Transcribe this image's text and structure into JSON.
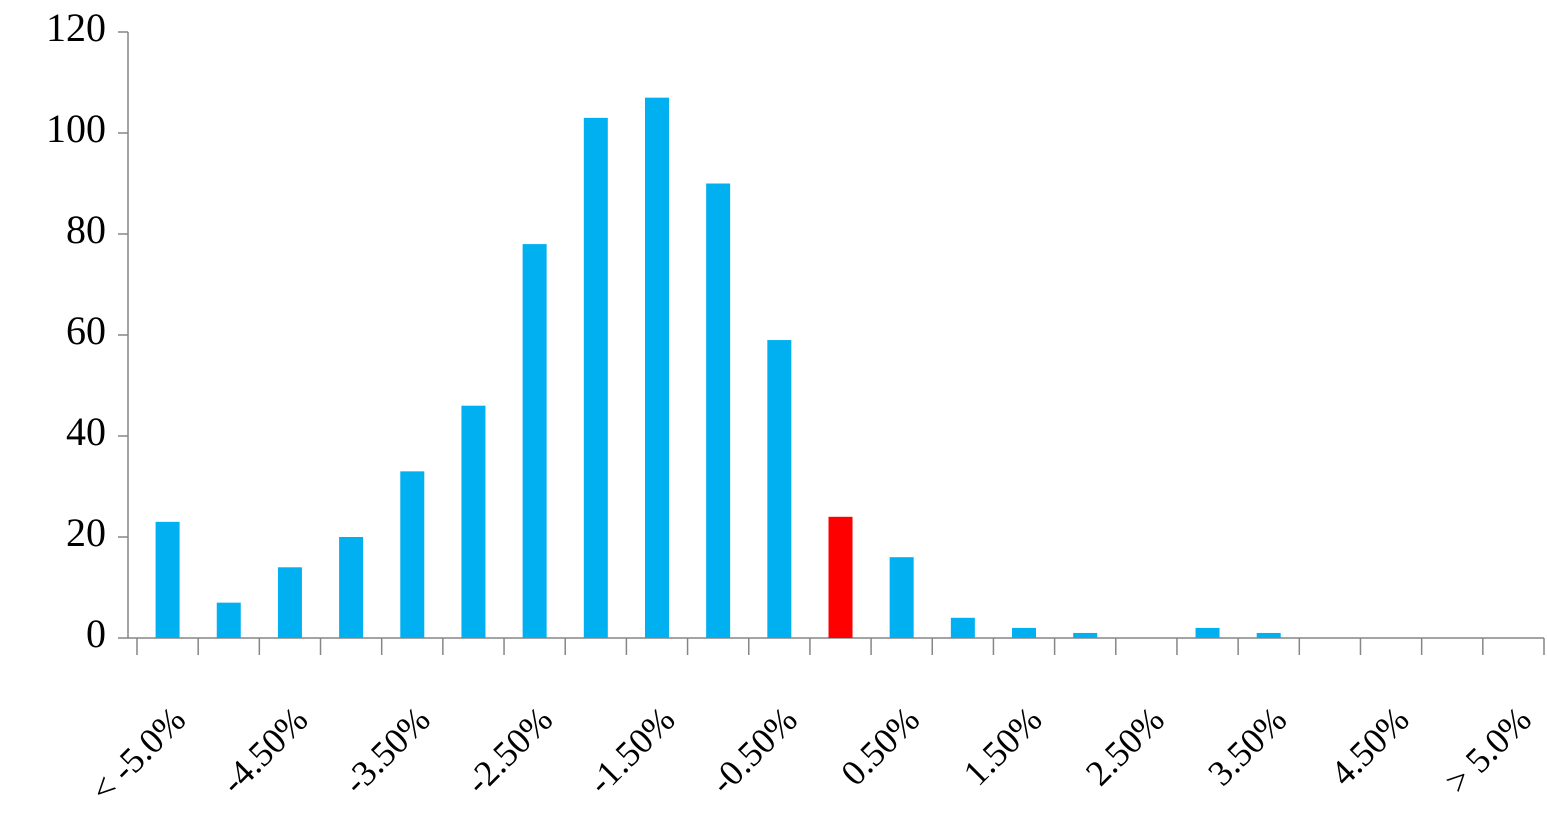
{
  "chart_data": {
    "type": "bar",
    "categories": [
      "< -5.0%",
      null,
      "-4.50%",
      null,
      "-3.50%",
      null,
      "-2.50%",
      null,
      "-1.50%",
      null,
      "-0.50%",
      null,
      "0.50%",
      null,
      "1.50%",
      null,
      "2.50%",
      null,
      "3.50%",
      null,
      "4.50%",
      null,
      "> 5.0%"
    ],
    "values": [
      23,
      7,
      14,
      20,
      33,
      46,
      78,
      103,
      107,
      90,
      59,
      24,
      16,
      4,
      2,
      1,
      0,
      2,
      1,
      0,
      0,
      0,
      0
    ],
    "colors": [
      "#00b0f0",
      "#00b0f0",
      "#00b0f0",
      "#00b0f0",
      "#00b0f0",
      "#00b0f0",
      "#00b0f0",
      "#00b0f0",
      "#00b0f0",
      "#00b0f0",
      "#00b0f0",
      "#ff0000",
      "#00b0f0",
      "#00b0f0",
      "#00b0f0",
      "#00b0f0",
      "#00b0f0",
      "#00b0f0",
      "#00b0f0",
      "#00b0f0",
      "#00b0f0",
      "#00b0f0",
      "#00b0f0"
    ],
    "ylim": [
      0,
      120
    ],
    "yticks": [
      0,
      20,
      40,
      60,
      80,
      100,
      120
    ],
    "grid": false
  }
}
